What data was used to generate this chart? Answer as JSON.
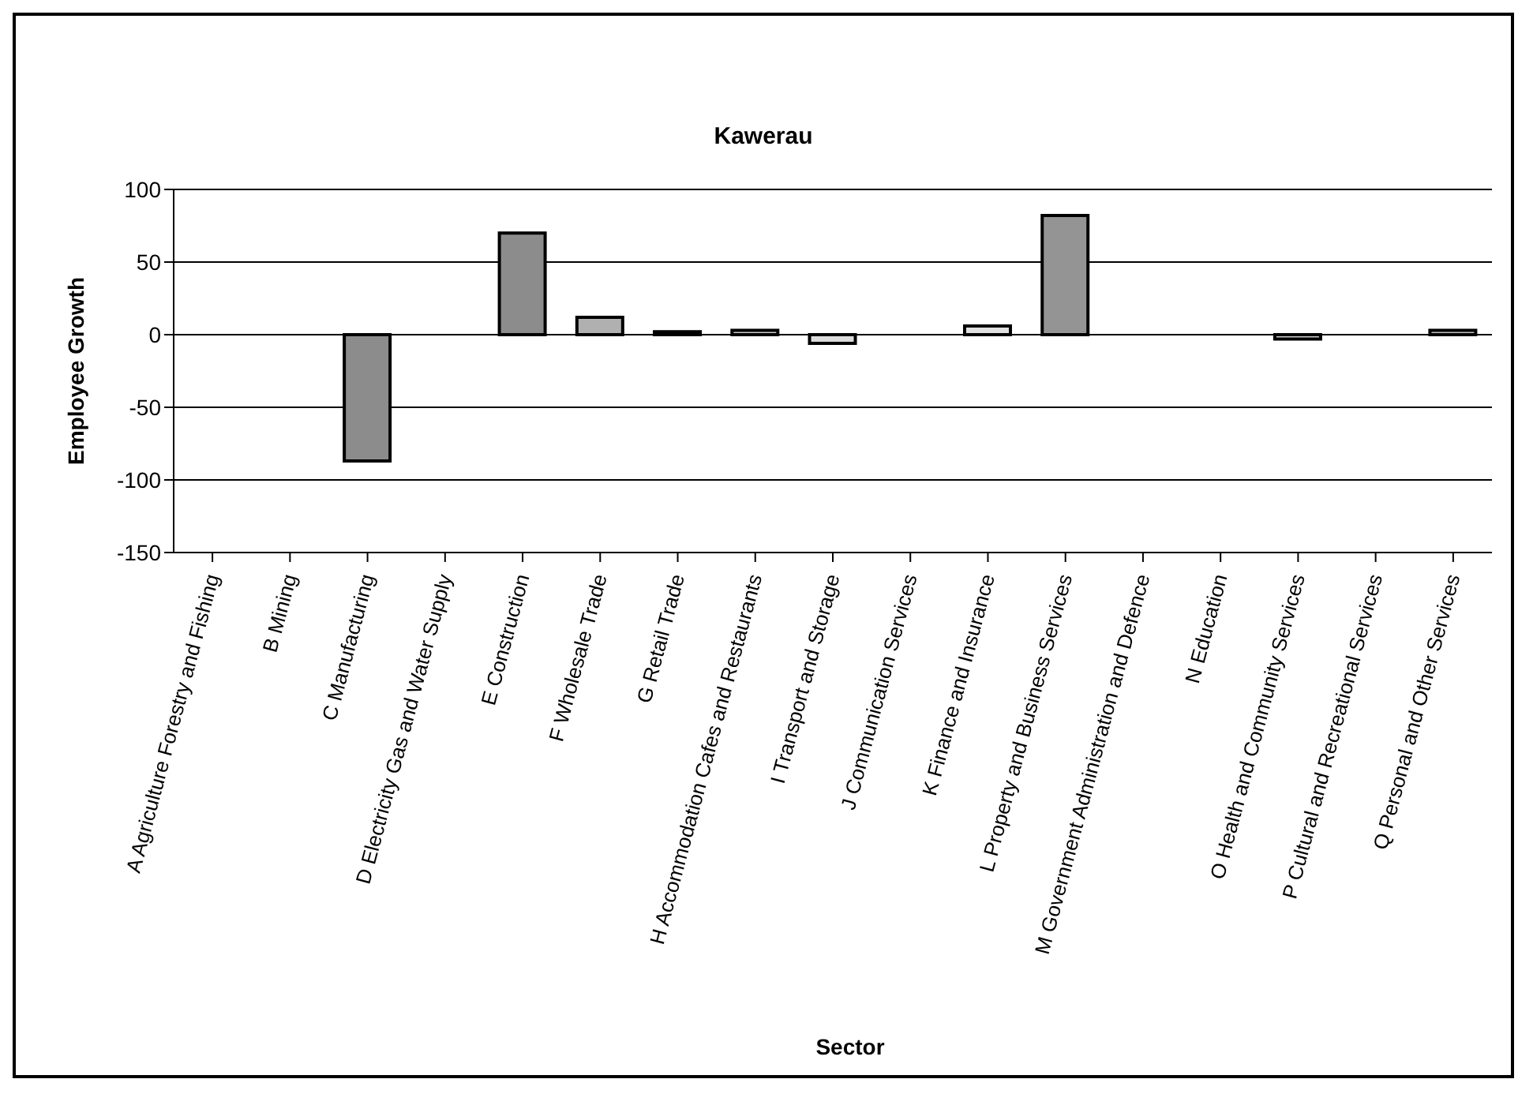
{
  "chart_data": {
    "type": "bar",
    "title": "Kawerau",
    "xlabel": "Sector",
    "ylabel": "Employee Growth",
    "categories": [
      "A Agriculture Forestry and Fishing",
      "B Mining",
      "C Manufacturing",
      "D Electricity Gas and Water Supply",
      "E Construction",
      "F Wholesale Trade",
      "G Retail Trade",
      "H Accommodation Cafes and Restaurants",
      "I Transport and Storage",
      "J Communication Services",
      "K Finance and Insurance",
      "L Property and Business Services",
      "M Government Administration and Defence",
      "N Education",
      "O Health and Community Services",
      "P Cultural and Recreational Services",
      "Q Personal and Other Services"
    ],
    "values": [
      0,
      0,
      -87,
      0,
      70,
      12,
      2,
      3,
      -6,
      0,
      6,
      82,
      0,
      0,
      -3,
      0,
      3
    ],
    "colors": [
      "#9a9a9a",
      "#9a9a9a",
      "#8c8c8c",
      "#9a9a9a",
      "#8c8c8c",
      "#b0b0b0",
      "#c8c8c8",
      "#c8c8c8",
      "#dcdcdc",
      "#9a9a9a",
      "#e0e0e0",
      "#949494",
      "#9a9a9a",
      "#9a9a9a",
      "#d0d0d0",
      "#9a9a9a",
      "#c0c0c0"
    ],
    "ylim": [
      -150,
      100
    ],
    "yticks": [
      -150,
      -100,
      -50,
      0,
      50,
      100
    ],
    "grid": "y"
  }
}
